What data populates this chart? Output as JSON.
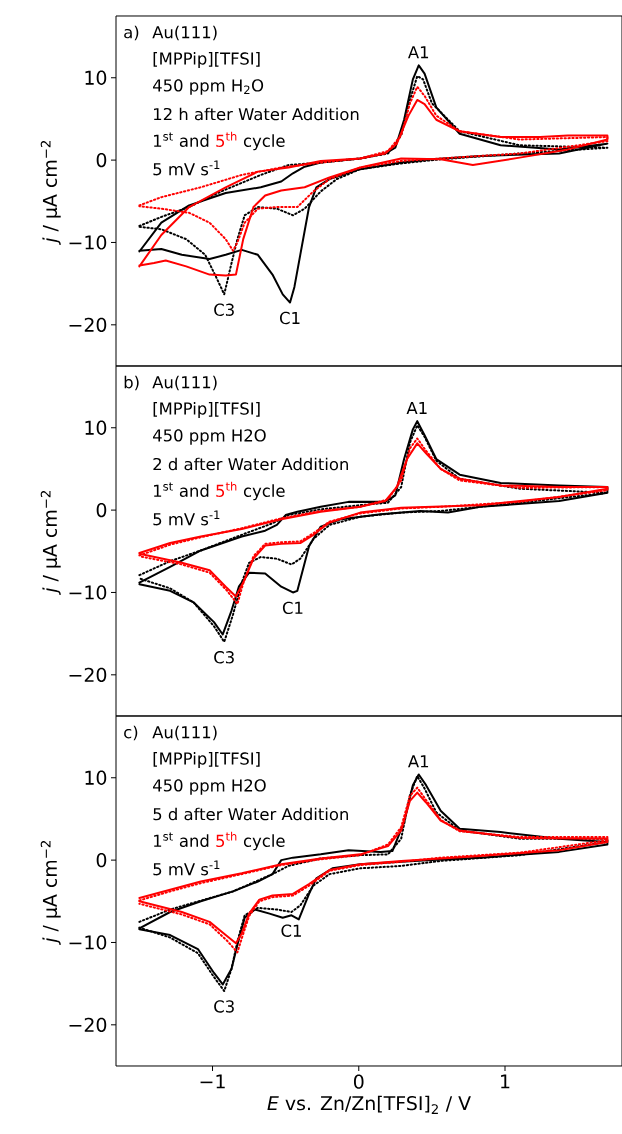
{
  "chart_data": [
    {
      "type": "line",
      "xlim": [
        -1.66,
        1.8
      ],
      "ylim": [
        -25,
        17.5
      ],
      "tick_labels": "y",
      "yticks": [
        {
          "value": -20,
          "label": "−20"
        },
        {
          "value": -10,
          "label": "−10"
        },
        {
          "value": 0,
          "label": "0"
        },
        {
          "value": 10,
          "label": "10"
        }
      ],
      "ylabel": "*j* / µA cm$^{−2}$",
      "annotations": [
        "a)",
        "Au(111)",
        "[MPPip][TFSI]",
        "450 ppm H$_{2}$O",
        "12 h after Water Addition",
        "1$^{st}$ and",
        "5$^{th}$",
        "cycle",
        "5 mV s$^{-1}$",
        {
          "text": "A1",
          "x": 0.41,
          "y": 11.5
        },
        {
          "text": "C3",
          "x": -0.92,
          "y": -16.3
        },
        {
          "text": "C1",
          "x": -0.47,
          "y": -17.3
        }
      ],
      "series": [
        {
          "color": "#000000",
          "line_style": "solid",
          "x": [
            -1.5,
            -1.35,
            -1.16,
            -0.91,
            -0.67,
            -0.53,
            -0.45,
            -0.37,
            -0.26,
            0.01,
            0.18,
            0.25,
            0.31,
            0.37,
            0.41,
            0.45,
            0.53,
            0.69,
            0.97,
            1.37,
            1.7,
            1.37,
            0.83,
            0.5,
            0.29,
            0.01,
            -0.2,
            -0.29,
            -0.34,
            -0.4,
            -0.44,
            -0.47,
            -0.52,
            -0.59,
            -0.69,
            -0.8,
            -0.91,
            -1.02,
            -1.21,
            -1.35,
            -1.5
          ],
          "values": [
            -11.1,
            -7.6,
            -5.5,
            -4.0,
            -3.3,
            -2.6,
            -1.6,
            -0.8,
            -0.3,
            0.2,
            0.8,
            1.5,
            4.9,
            9.8,
            11.5,
            10.5,
            6.4,
            3.2,
            1.8,
            1.3,
            2.0,
            0.8,
            0.5,
            0.1,
            -0.3,
            -1.1,
            -2.3,
            -3.3,
            -5.7,
            -11.5,
            -15.4,
            -17.3,
            -16.3,
            -13.9,
            -11.5,
            -10.9,
            -11.5,
            -12.0,
            -11.5,
            -10.8,
            -11.0
          ]
        },
        {
          "color": "#000000",
          "line_style": "dotted",
          "x": [
            -1.5,
            -1.35,
            -1.16,
            -0.94,
            -0.67,
            -0.48,
            -0.26,
            0.01,
            0.2,
            0.29,
            0.35,
            0.4,
            0.44,
            0.5,
            0.69,
            1.1,
            1.7,
            1.1,
            0.56,
            0.29,
            0.01,
            -0.15,
            -0.26,
            -0.37,
            -0.45,
            -0.56,
            -0.69,
            -0.78,
            -0.83,
            -0.87,
            -0.92,
            -0.97,
            -1.05,
            -1.18,
            -1.35,
            -1.5
          ],
          "values": [
            -8.0,
            -6.9,
            -5.7,
            -3.8,
            -1.8,
            -0.6,
            -0.3,
            0.2,
            0.8,
            3.0,
            7.3,
            10.2,
            9.8,
            6.9,
            3.5,
            1.8,
            1.5,
            0.8,
            0.1,
            -0.4,
            -1.1,
            -2.3,
            -3.8,
            -5.9,
            -6.7,
            -5.9,
            -5.7,
            -6.7,
            -9.6,
            -12.5,
            -16.3,
            -14.4,
            -11.5,
            -9.6,
            -8.4,
            -8.1
          ]
        },
        {
          "color": "#ff0000",
          "line_style": "solid",
          "x": [
            -1.5,
            -1.35,
            -1.16,
            -0.91,
            -0.69,
            -0.48,
            -0.26,
            0.01,
            0.18,
            0.26,
            0.34,
            0.4,
            0.45,
            0.53,
            0.69,
            0.97,
            1.24,
            1.43,
            1.7,
            1.7,
            1.43,
            1.1,
            0.78,
            0.56,
            0.29,
            0.01,
            -0.2,
            -0.37,
            -0.53,
            -0.64,
            -0.72,
            -0.79,
            -0.84,
            -0.91,
            -1.02,
            -1.18,
            -1.32,
            -1.4,
            -1.5
          ],
          "values": [
            -12.9,
            -9.1,
            -5.7,
            -3.3,
            -1.4,
            -0.9,
            -0.1,
            0.2,
            0.8,
            2.0,
            5.4,
            7.3,
            6.8,
            4.9,
            3.5,
            2.8,
            2.8,
            3.0,
            3.0,
            2.5,
            1.3,
            0.3,
            -0.6,
            0.1,
            0.2,
            -0.9,
            -2.1,
            -3.3,
            -3.7,
            -4.3,
            -5.7,
            -9.6,
            -13.9,
            -14.0,
            -13.9,
            -12.9,
            -12.2,
            -12.5,
            -12.8
          ]
        },
        {
          "color": "#ff0000",
          "line_style": "dotted",
          "x": [
            -1.5,
            -1.35,
            -1.08,
            -0.8,
            -0.53,
            -0.26,
            0.01,
            0.2,
            0.29,
            0.35,
            0.4,
            0.45,
            0.53,
            0.69,
            1.1,
            1.7,
            1.7,
            1.1,
            0.56,
            0.29,
            0.01,
            -0.2,
            -0.31,
            -0.42,
            -0.56,
            -0.69,
            -0.78,
            -0.83,
            -0.86,
            -0.91,
            -1.02,
            -1.16,
            -1.35,
            -1.5
          ],
          "values": [
            -5.5,
            -4.5,
            -3.3,
            -1.8,
            -0.9,
            -0.3,
            0.2,
            1.1,
            3.0,
            6.9,
            8.9,
            7.8,
            5.4,
            3.5,
            2.5,
            2.8,
            2.3,
            0.8,
            0.2,
            -0.1,
            -0.9,
            -2.3,
            -3.8,
            -5.7,
            -5.7,
            -5.9,
            -7.6,
            -10.0,
            -11.0,
            -9.6,
            -7.6,
            -6.4,
            -5.9,
            -5.6
          ]
        }
      ]
    },
    {
      "type": "line",
      "xlim": [
        -1.66,
        1.8
      ],
      "ylim": [
        -25,
        17.5
      ],
      "tick_labels": "y",
      "yticks": [
        {
          "value": -20,
          "label": "−20"
        },
        {
          "value": -10,
          "label": "−10"
        },
        {
          "value": 0,
          "label": "0"
        },
        {
          "value": 10,
          "label": "10"
        }
      ],
      "ylabel": "*j* / µA cm$^{−2}$",
      "annotations": [
        "b)",
        "Au(111)",
        "[MPPip][TFSI]",
        "450 ppm H2O",
        "2 d after Water Addition",
        "1$^{st}$ and",
        "5$^{th}$",
        "cycle",
        "5 mV s$^{-1}$",
        {
          "text": "A1",
          "x": 0.4,
          "y": 10.8
        },
        {
          "text": "C3",
          "x": -0.92,
          "y": -16.0
        },
        {
          "text": "C1",
          "x": -0.45,
          "y": -10.0
        }
      ],
      "series": [
        {
          "color": "#000000",
          "line_style": "solid",
          "x": [
            -1.5,
            -1.29,
            -1.08,
            -0.8,
            -0.64,
            -0.56,
            -0.5,
            -0.42,
            -0.26,
            -0.07,
            0.18,
            0.25,
            0.31,
            0.37,
            0.4,
            0.45,
            0.53,
            0.69,
            0.97,
            1.37,
            1.7,
            1.7,
            1.37,
            0.83,
            0.61,
            0.42,
            0.15,
            -0.12,
            -0.26,
            -0.34,
            -0.42,
            -0.45,
            -0.53,
            -0.64,
            -0.75,
            -0.82,
            -0.87,
            -0.93,
            -0.99,
            -1.13,
            -1.29,
            -1.5
          ],
          "values": [
            -8.8,
            -6.9,
            -4.9,
            -3.2,
            -2.5,
            -1.8,
            -0.6,
            -0.2,
            0.4,
            1.0,
            1.0,
            1.8,
            6.2,
            9.8,
            10.8,
            9.1,
            6.2,
            4.3,
            3.3,
            3.0,
            2.8,
            2.1,
            1.1,
            0.4,
            -0.3,
            -0.1,
            -0.5,
            -1.1,
            -2.0,
            -4.4,
            -9.8,
            -10.0,
            -9.3,
            -7.7,
            -7.6,
            -9.3,
            -12.2,
            -15.1,
            -13.6,
            -11.2,
            -9.8,
            -9.0
          ]
        },
        {
          "color": "#000000",
          "line_style": "dotted",
          "x": [
            -1.5,
            -1.29,
            -1.08,
            -0.8,
            -0.59,
            -0.48,
            -0.26,
            0.01,
            0.2,
            0.29,
            0.35,
            0.4,
            0.45,
            0.53,
            0.69,
            1.1,
            1.7,
            1.1,
            0.56,
            0.29,
            0.01,
            -0.2,
            -0.31,
            -0.4,
            -0.46,
            -0.56,
            -0.67,
            -0.75,
            -0.8,
            -0.86,
            -0.92,
            -0.99,
            -1.13,
            -1.29,
            -1.5
          ],
          "values": [
            -7.9,
            -6.2,
            -4.9,
            -3.0,
            -1.6,
            -0.6,
            0.1,
            0.6,
            0.9,
            2.8,
            8.2,
            10.3,
            8.9,
            6.0,
            3.8,
            2.6,
            2.1,
            0.9,
            -0.1,
            -0.3,
            -0.8,
            -1.8,
            -3.5,
            -5.9,
            -6.6,
            -5.9,
            -5.7,
            -6.4,
            -8.8,
            -12.7,
            -16.0,
            -14.1,
            -11.2,
            -9.5,
            -8.3
          ]
        },
        {
          "color": "#ff0000",
          "line_style": "solid",
          "x": [
            -1.5,
            -1.29,
            -1.08,
            -0.8,
            -0.53,
            -0.26,
            0.01,
            0.18,
            0.26,
            0.33,
            0.4,
            0.46,
            0.56,
            0.69,
            0.97,
            1.37,
            1.7,
            1.7,
            1.37,
            0.83,
            0.29,
            0.01,
            -0.2,
            -0.31,
            -0.4,
            -0.53,
            -0.64,
            -0.72,
            -0.79,
            -0.84,
            -0.91,
            -1.02,
            -1.21,
            -1.5
          ],
          "values": [
            -5.2,
            -4.0,
            -3.2,
            -2.3,
            -1.1,
            -0.2,
            0.4,
            1.1,
            2.8,
            6.2,
            8.1,
            6.9,
            5.0,
            3.8,
            3.0,
            2.8,
            2.8,
            2.6,
            1.6,
            0.6,
            0.3,
            -0.3,
            -1.5,
            -3.0,
            -4.0,
            -4.1,
            -4.3,
            -5.9,
            -8.8,
            -10.5,
            -9.3,
            -7.3,
            -6.4,
            -5.3
          ]
        },
        {
          "color": "#ff0000",
          "line_style": "dotted",
          "x": [
            -1.5,
            -1.29,
            -1.08,
            -0.8,
            -0.53,
            -0.26,
            0.01,
            0.2,
            0.29,
            0.35,
            0.4,
            0.46,
            0.56,
            0.69,
            1.1,
            1.7,
            1.7,
            1.1,
            0.56,
            0.29,
            0.01,
            -0.2,
            -0.31,
            -0.4,
            -0.53,
            -0.64,
            -0.72,
            -0.79,
            -0.83,
            -0.9,
            -1.02,
            -1.21,
            -1.5
          ],
          "values": [
            -5.5,
            -4.2,
            -3.3,
            -2.2,
            -1.0,
            -0.1,
            0.4,
            1.3,
            3.6,
            7.5,
            8.7,
            7.2,
            5.0,
            3.6,
            2.7,
            2.8,
            2.4,
            1.0,
            0.4,
            0.2,
            -0.4,
            -1.4,
            -2.8,
            -3.8,
            -3.9,
            -4.1,
            -5.6,
            -8.9,
            -11.4,
            -9.8,
            -7.6,
            -6.6,
            -5.6
          ]
        }
      ]
    },
    {
      "type": "line",
      "xlim": [
        -1.66,
        1.8
      ],
      "ylim": [
        -25,
        17.5
      ],
      "xticks": [
        {
          "value": -1,
          "label": "−1"
        },
        {
          "value": 0,
          "label": "0"
        },
        {
          "value": 1,
          "label": "1"
        }
      ],
      "yticks": [
        {
          "value": -20,
          "label": "−20"
        },
        {
          "value": -10,
          "label": "−10"
        },
        {
          "value": 0,
          "label": "0"
        },
        {
          "value": 10,
          "label": "10"
        }
      ],
      "xlabel": "*E* vs. Zn/Zn[TFSI]$_{2}$ / V",
      "ylabel": "*j* / µA cm$^{−2}$",
      "annotations": [
        "c)",
        "Au(111)",
        "[MPPip][TFSI]",
        "450 ppm H2O",
        "5 d after Water Addition",
        "1$^{st}$ and",
        "5$^{th}$",
        "cycle",
        "5 mV s$^{-1}$",
        {
          "text": "A1",
          "x": 0.41,
          "y": 10.4
        },
        {
          "text": "C3",
          "x": -0.92,
          "y": -15.9
        },
        {
          "text": "C1",
          "x": -0.46,
          "y": -6.7
        }
      ],
      "series": [
        {
          "color": "#000000",
          "line_style": "solid",
          "x": [
            -1.5,
            -1.29,
            -1.08,
            -0.86,
            -0.69,
            -0.59,
            -0.53,
            -0.45,
            -0.26,
            -0.07,
            0.15,
            0.23,
            0.31,
            0.37,
            0.41,
            0.46,
            0.56,
            0.69,
            0.97,
            1.37,
            1.7,
            1.7,
            1.37,
            0.83,
            0.5,
            0.29,
            0.01,
            -0.18,
            -0.29,
            -0.34,
            -0.41,
            -0.46,
            -0.52,
            -0.61,
            -0.71,
            -0.78,
            -0.83,
            -0.87,
            -0.93,
            -0.99,
            -1.1,
            -1.29,
            -1.5
          ],
          "values": [
            -8.3,
            -6.3,
            -5.0,
            -3.8,
            -2.6,
            -1.7,
            0.0,
            0.3,
            0.7,
            1.2,
            1.0,
            1.1,
            4.6,
            9.1,
            10.4,
            9.1,
            6.0,
            3.8,
            3.4,
            2.6,
            2.2,
            1.9,
            1.0,
            0.3,
            0.0,
            -0.2,
            -0.5,
            -1.0,
            -2.2,
            -4.1,
            -7.2,
            -6.7,
            -7.0,
            -6.5,
            -6.0,
            -7.0,
            -10.3,
            -13.2,
            -15.1,
            -13.7,
            -10.8,
            -9.1,
            -8.4
          ]
        },
        {
          "color": "#000000",
          "line_style": "dotted",
          "x": [
            -1.5,
            -1.29,
            -0.86,
            -0.59,
            -0.48,
            -0.26,
            0.01,
            0.2,
            0.29,
            0.35,
            0.4,
            0.45,
            0.53,
            0.69,
            1.1,
            1.7,
            1.7,
            1.1,
            0.56,
            0.29,
            0.01,
            -0.2,
            -0.31,
            -0.4,
            -0.46,
            -0.56,
            -0.69,
            -0.78,
            -0.83,
            -0.87,
            -0.92,
            -0.99,
            -1.1,
            -1.29,
            -1.5
          ],
          "values": [
            -7.5,
            -6.0,
            -3.8,
            -1.7,
            -0.7,
            0.2,
            0.6,
            0.7,
            2.6,
            7.9,
            10.2,
            8.7,
            5.8,
            3.6,
            2.6,
            2.6,
            2.2,
            0.6,
            -0.1,
            -0.7,
            -1.0,
            -1.7,
            -3.1,
            -5.5,
            -6.3,
            -6.0,
            -5.8,
            -6.7,
            -9.9,
            -13.2,
            -15.9,
            -14.2,
            -11.3,
            -9.4,
            -8.2
          ]
        },
        {
          "color": "#ff0000",
          "line_style": "solid",
          "x": [
            -1.5,
            -1.29,
            -1.08,
            -0.8,
            -0.53,
            -0.26,
            0.01,
            0.2,
            0.29,
            0.35,
            0.4,
            0.46,
            0.56,
            0.69,
            1.1,
            1.7,
            1.7,
            1.37,
            0.83,
            0.29,
            0.01,
            -0.2,
            -0.34,
            -0.45,
            -0.59,
            -0.68,
            -0.75,
            -0.8,
            -0.84,
            -0.91,
            -1.02,
            -1.21,
            -1.5
          ],
          "values": [
            -4.6,
            -3.6,
            -2.6,
            -1.6,
            -0.5,
            0.2,
            0.7,
            1.7,
            3.6,
            7.2,
            8.2,
            7.0,
            4.8,
            3.6,
            2.7,
            2.6,
            2.2,
            1.2,
            0.5,
            -0.1,
            -0.5,
            -1.2,
            -2.9,
            -4.1,
            -4.3,
            -4.8,
            -6.5,
            -8.9,
            -10.1,
            -9.1,
            -7.5,
            -6.3,
            -5.0
          ]
        },
        {
          "color": "#ff0000",
          "line_style": "dotted",
          "x": [
            -1.5,
            -1.29,
            -1.08,
            -0.8,
            -0.53,
            -0.26,
            0.01,
            0.2,
            0.29,
            0.35,
            0.4,
            0.46,
            0.56,
            0.69,
            1.1,
            1.7,
            1.7,
            1.1,
            0.56,
            0.29,
            0.01,
            -0.2,
            -0.34,
            -0.45,
            -0.59,
            -0.68,
            -0.75,
            -0.8,
            -0.83,
            -0.9,
            -1.02,
            -1.21,
            -1.5
          ],
          "values": [
            -4.9,
            -3.8,
            -2.8,
            -1.7,
            -0.6,
            0.1,
            0.6,
            1.9,
            4.0,
            7.8,
            8.8,
            7.3,
            4.9,
            3.5,
            2.8,
            2.8,
            2.4,
            0.9,
            0.3,
            -0.2,
            -0.6,
            -1.3,
            -3.1,
            -4.3,
            -4.5,
            -5.0,
            -6.8,
            -9.5,
            -11.2,
            -9.8,
            -7.8,
            -6.6,
            -5.3
          ]
        }
      ]
    }
  ]
}
